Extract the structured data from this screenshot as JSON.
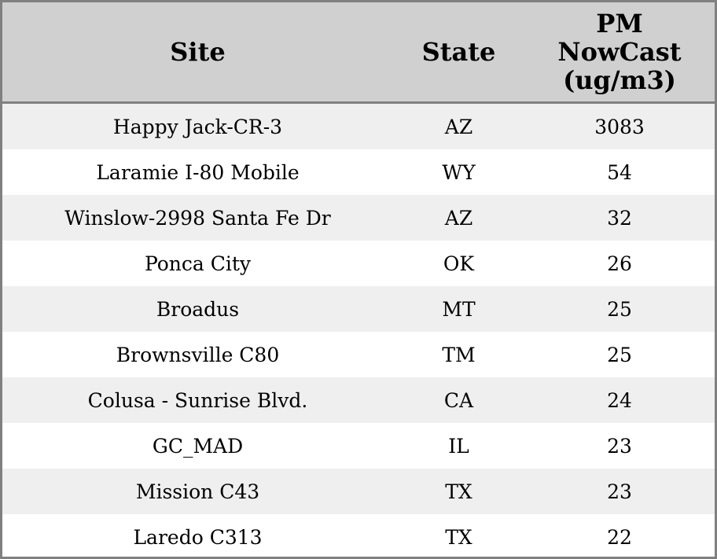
{
  "table": {
    "header": [
      "Site",
      "State",
      "PM NowCast (ug/m3)"
    ],
    "rows": [
      [
        "Happy Jack-CR-3",
        "AZ",
        3083
      ],
      [
        "Laramie I-80 Mobile",
        "WY",
        54
      ],
      [
        "Winslow-2998 Santa Fe Dr",
        "AZ",
        32
      ],
      [
        "Ponca City",
        "OK",
        26
      ],
      [
        "Broadus",
        "MT",
        25
      ],
      [
        "Brownsville C80",
        "TM",
        25
      ],
      [
        "Colusa - Sunrise Blvd.",
        "CA",
        24
      ],
      [
        "GC_MAD",
        "IL",
        23
      ],
      [
        "Mission C43",
        "TX",
        23
      ],
      [
        "Laredo C313",
        "TX",
        22
      ]
    ]
  }
}
